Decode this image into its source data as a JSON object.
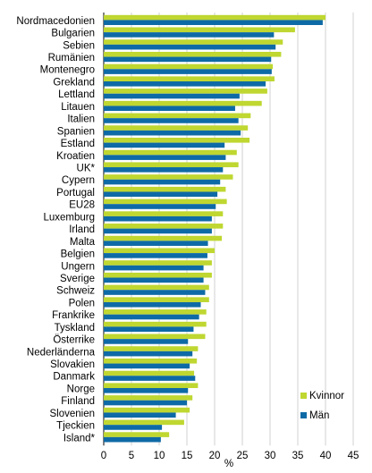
{
  "chart_data": {
    "type": "bar",
    "orientation": "horizontal",
    "xlabel": "%",
    "xlim": [
      0,
      45
    ],
    "xticks": [
      0,
      5,
      10,
      15,
      20,
      25,
      30,
      35,
      40,
      45
    ],
    "grid": "vertical",
    "legend_position": "right",
    "categories": [
      "Nordmacedonien",
      "Bulgarien",
      "Sebien",
      "Rumänien",
      "Montenegro",
      "Grekland",
      "Lettland",
      "Litauen",
      "Italien",
      "Spanien",
      "Estland",
      "Kroatien",
      "UK*",
      "Cypern",
      "Portugal",
      "EU28",
      "Luxemburg",
      "Irland",
      "Malta",
      "Belgien",
      "Ungern",
      "Sverige",
      "Schweiz",
      "Polen",
      "Frankrike",
      "Tyskland",
      "Österrike",
      "Nederländerna",
      "Slovakien",
      "Danmark",
      "Norge",
      "Finland",
      "Slovenien",
      "Tjeckien",
      "Island*"
    ],
    "series": [
      {
        "name": "Kvinnor",
        "color": "#bfd730",
        "values": [
          40.0,
          34.5,
          32.3,
          32.0,
          30.5,
          30.8,
          29.5,
          28.5,
          26.5,
          26.0,
          26.3,
          24.0,
          24.3,
          23.3,
          22.0,
          22.2,
          21.5,
          21.5,
          21.3,
          20.0,
          19.5,
          19.5,
          19.0,
          19.0,
          18.5,
          18.5,
          18.3,
          17.0,
          16.8,
          16.3,
          17.0,
          16.0,
          15.5,
          14.5,
          11.8
        ]
      },
      {
        "name": "Män",
        "color": "#0e6aa6",
        "values": [
          39.5,
          30.7,
          31.0,
          30.2,
          30.3,
          29.2,
          24.5,
          23.7,
          24.3,
          24.7,
          21.8,
          22.0,
          21.5,
          21.0,
          20.5,
          20.2,
          19.5,
          19.5,
          18.8,
          18.7,
          18.0,
          18.0,
          18.3,
          17.5,
          17.2,
          16.2,
          15.2,
          16.0,
          15.5,
          16.5,
          15.2,
          15.0,
          13.0,
          10.5,
          10.3
        ]
      }
    ]
  }
}
